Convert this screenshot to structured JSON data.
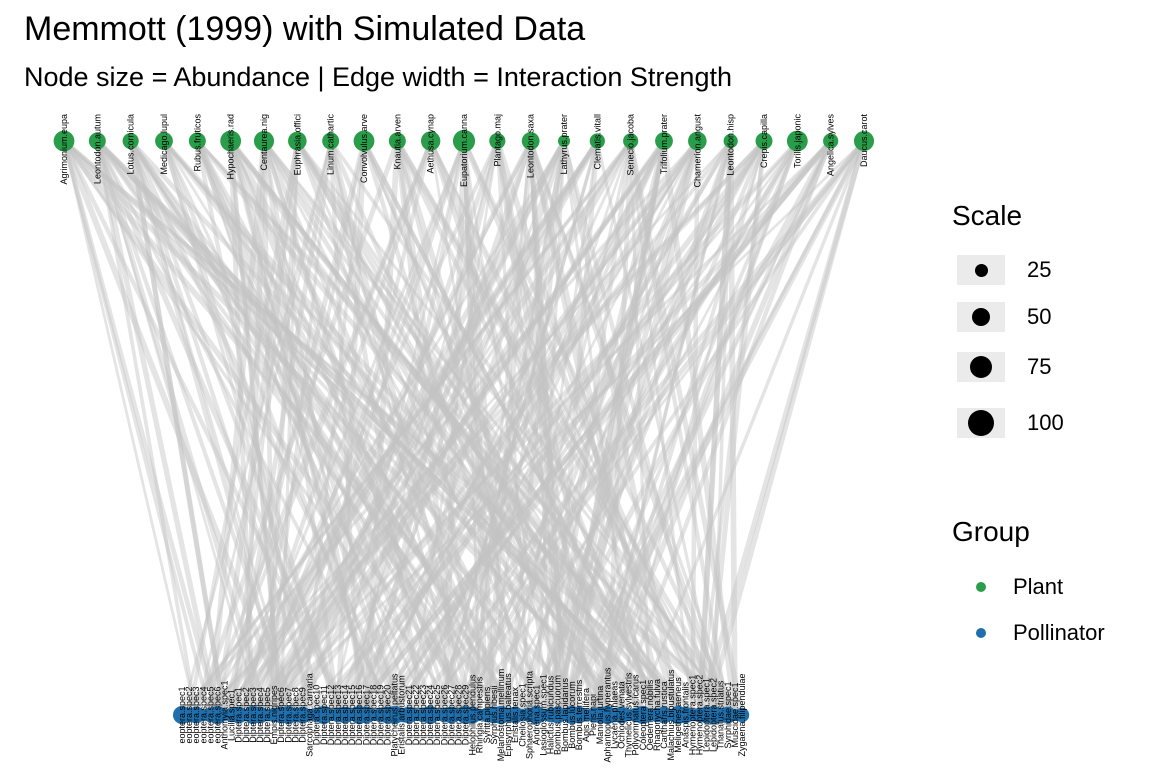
{
  "title": "Memmott (1999) with Simulated Data",
  "subtitle": "Node size = Abundance | Edge width = Interaction Strength",
  "colors": {
    "plant": "#2a9d4a",
    "pollinator": "#1f6fad",
    "edge": "#c4c4c4",
    "legend_bg": "#ebebeb"
  },
  "plants": [
    {
      "label": "Agrimonium.eupa",
      "abundance": 75
    },
    {
      "label": "Leontodon.autum",
      "abundance": 50
    },
    {
      "label": "Lotus.cornicula",
      "abundance": 45
    },
    {
      "label": "Medicago.lupul",
      "abundance": 55
    },
    {
      "label": "Rubus.fruticos",
      "abundance": 50
    },
    {
      "label": "Hypochaeris.rad",
      "abundance": 75
    },
    {
      "label": "Centaurea.nig",
      "abundance": 70
    },
    {
      "label": "Euphrasia.offici",
      "abundance": 60
    },
    {
      "label": "Linum.cathartic",
      "abundance": 50
    },
    {
      "label": "Convolvulus.arve",
      "abundance": 75
    },
    {
      "label": "Knautia.arven",
      "abundance": 50
    },
    {
      "label": "Aethusa.cynap",
      "abundance": 65
    },
    {
      "label": "Eupatorium.canna",
      "abundance": 85
    },
    {
      "label": "Plantago.maj",
      "abundance": 45
    },
    {
      "label": "Leontodon.saxa",
      "abundance": 55
    },
    {
      "label": "Lathyrus.prater",
      "abundance": 25
    },
    {
      "label": "Clematis.vitall",
      "abundance": 40
    },
    {
      "label": "Senecio.jacoba",
      "abundance": 40
    },
    {
      "label": "Trifolium.prater",
      "abundance": 55
    },
    {
      "label": "Chamerion.angust",
      "abundance": 60
    },
    {
      "label": "Leontodon.hisp",
      "abundance": 35
    },
    {
      "label": "Crepis.capilla",
      "abundance": 50
    },
    {
      "label": "Torilis.japonic",
      "abundance": 75
    },
    {
      "label": "Angelica.sylves",
      "abundance": 40
    },
    {
      "label": "Daucus.carot",
      "abundance": 70
    }
  ],
  "pollinators": [
    "eoptera.spec1",
    "eoptera.spec2",
    "eoptera.spec3",
    "eoptera.spec4",
    "eoptera.spec5",
    "eoptera.spec6",
    "Anthomyia.spec1",
    "Lucilia.spec1",
    "Diptera.spec1",
    "Diptera.spec2",
    "Diptera.spec3",
    "Diptera.spec4",
    "Diptera.spec5",
    "Empis.nigripes",
    "Diptera.spec6",
    "Diptera.spec7",
    "Diptera.spec8",
    "Diptera.spec9",
    "Sarcophaga.carnaria",
    "Diptera.spec10",
    "Diptera.spec11",
    "Diptera.spec12",
    "Diptera.spec13",
    "Diptera.spec14",
    "Diptera.spec15",
    "Diptera.spec16",
    "Diptera.spec17",
    "Diptera.spec18",
    "Diptera.spec19",
    "Diptera.spec20",
    "Platycheirus.peltatus",
    "Eristalis.arbustorum",
    "Diptera.spec21",
    "Diptera.spec22",
    "Diptera.spec23",
    "Diptera.spec24",
    "Diptera.spec25",
    "Diptera.spec26",
    "Diptera.spec27",
    "Diptera.spec28",
    "Diptera.spec29",
    "Helophilus.pendulus",
    "Rhingia.campestris",
    "Syritta.pipiens",
    "Syrphus.ribesii",
    "Melanostoma.mellinum",
    "Episyrphus.balteatus",
    "Eristalis.tenax",
    "Cheilosia.spec1",
    "Sphaerophoria.scripta",
    "Andrena.spec1",
    "Lasioglossum.spec1",
    "Halictus.rubicundus",
    "Bombus.pascuorum",
    "Bombus.lapidarius",
    "Bombus.lucorum",
    "Bombus.terrestris",
    "Apis.mellifera",
    "Pieris.napi",
    "Maniola.jurtina",
    "Aphantopus.hyperantus",
    "Lycaena.phlaeas",
    "Ochlodes.venata",
    "Thymelicus.sylvestris",
    "Polyommatus.icarus",
    "Coleoptera.spec1",
    "Oedemera.nobilis",
    "Rhagonycha.fulva",
    "Cantharis.rustica",
    "Malachius.bipustulatus",
    "Meligethes.aeneus",
    "Anaspis.frontalis",
    "Hymenoptera.spec1",
    "Hymenoptera.spec2",
    "Lepidoptera.spec1",
    "Lepidoptera.spec2",
    "Thanatus.striatus",
    "Syrphidae.spec1",
    "Muscidae.spec1",
    "Zygaena.filipendulae"
  ],
  "legend": {
    "scale_title": "Scale",
    "scale_items": [
      {
        "label": "25",
        "value": 25
      },
      {
        "label": "50",
        "value": 50
      },
      {
        "label": "75",
        "value": 75
      },
      {
        "label": "100",
        "value": 100
      }
    ],
    "group_title": "Group",
    "group_items": [
      {
        "label": "Plant",
        "color_key": "plant"
      },
      {
        "label": "Pollinator",
        "color_key": "pollinator"
      }
    ]
  }
}
